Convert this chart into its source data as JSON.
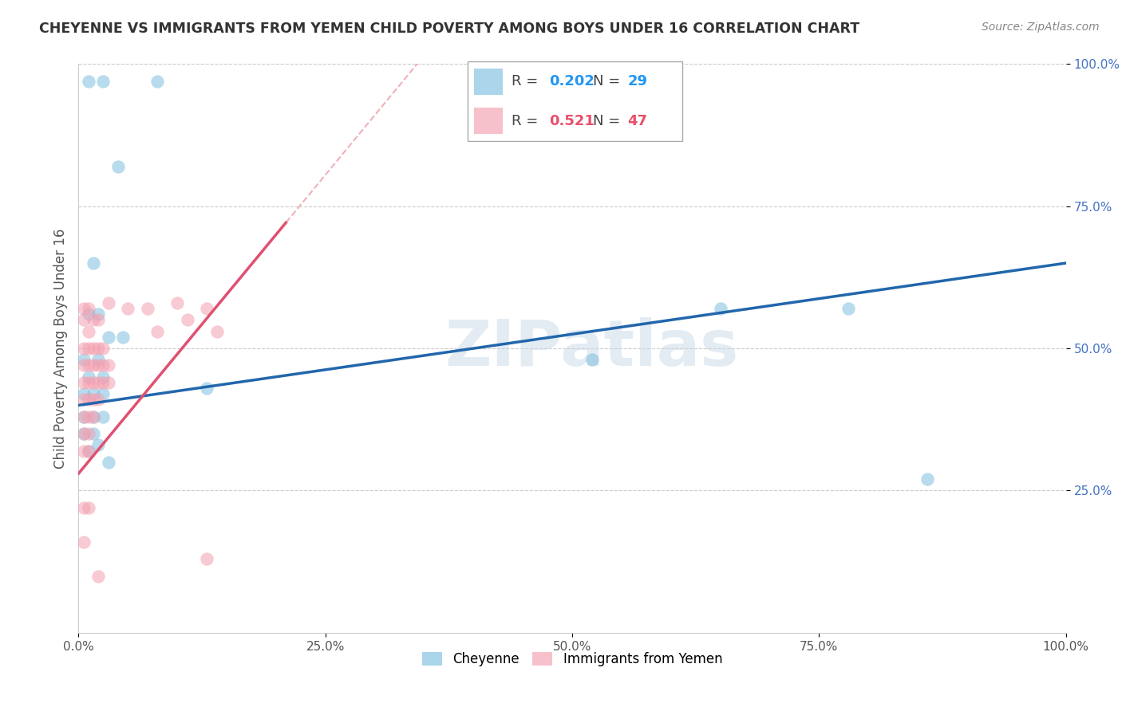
{
  "title": "CHEYENNE VS IMMIGRANTS FROM YEMEN CHILD POVERTY AMONG BOYS UNDER 16 CORRELATION CHART",
  "source": "Source: ZipAtlas.com",
  "ylabel": "Child Poverty Among Boys Under 16",
  "xlim": [
    0,
    1.0
  ],
  "ylim": [
    0,
    1.0
  ],
  "xtick_labels": [
    "0.0%",
    "25.0%",
    "50.0%",
    "75.0%",
    "100.0%"
  ],
  "xtick_positions": [
    0,
    0.25,
    0.5,
    0.75,
    1.0
  ],
  "ytick_labels": [
    "25.0%",
    "50.0%",
    "75.0%",
    "100.0%"
  ],
  "ytick_positions": [
    0.25,
    0.5,
    0.75,
    1.0
  ],
  "cheyenne_color": "#7fbfdf",
  "yemen_color": "#f4a0b0",
  "cheyenne_line_color": "#2166ac",
  "yemen_line_color": "#e05070",
  "yemen_dash_color": "#f0b0b8",
  "cheyenne_R": "0.202",
  "cheyenne_N": "29",
  "yemen_R": "0.521",
  "yemen_N": "47",
  "cheyenne_scatter": [
    [
      0.01,
      0.97
    ],
    [
      0.025,
      0.97
    ],
    [
      0.08,
      0.97
    ],
    [
      0.04,
      0.82
    ],
    [
      0.015,
      0.65
    ],
    [
      0.01,
      0.56
    ],
    [
      0.02,
      0.56
    ],
    [
      0.03,
      0.52
    ],
    [
      0.045,
      0.52
    ],
    [
      0.005,
      0.48
    ],
    [
      0.02,
      0.48
    ],
    [
      0.01,
      0.45
    ],
    [
      0.025,
      0.45
    ],
    [
      0.005,
      0.42
    ],
    [
      0.015,
      0.42
    ],
    [
      0.025,
      0.42
    ],
    [
      0.005,
      0.38
    ],
    [
      0.015,
      0.38
    ],
    [
      0.025,
      0.38
    ],
    [
      0.005,
      0.35
    ],
    [
      0.015,
      0.35
    ],
    [
      0.01,
      0.32
    ],
    [
      0.02,
      0.33
    ],
    [
      0.03,
      0.3
    ],
    [
      0.13,
      0.43
    ],
    [
      0.52,
      0.48
    ],
    [
      0.65,
      0.57
    ],
    [
      0.78,
      0.57
    ],
    [
      0.86,
      0.27
    ]
  ],
  "yemen_scatter": [
    [
      0.005,
      0.57
    ],
    [
      0.005,
      0.55
    ],
    [
      0.01,
      0.57
    ],
    [
      0.01,
      0.53
    ],
    [
      0.015,
      0.55
    ],
    [
      0.02,
      0.55
    ],
    [
      0.005,
      0.5
    ],
    [
      0.01,
      0.5
    ],
    [
      0.015,
      0.5
    ],
    [
      0.02,
      0.5
    ],
    [
      0.025,
      0.5
    ],
    [
      0.005,
      0.47
    ],
    [
      0.01,
      0.47
    ],
    [
      0.015,
      0.47
    ],
    [
      0.02,
      0.47
    ],
    [
      0.025,
      0.47
    ],
    [
      0.03,
      0.47
    ],
    [
      0.005,
      0.44
    ],
    [
      0.01,
      0.44
    ],
    [
      0.015,
      0.44
    ],
    [
      0.02,
      0.44
    ],
    [
      0.025,
      0.44
    ],
    [
      0.03,
      0.44
    ],
    [
      0.005,
      0.41
    ],
    [
      0.01,
      0.41
    ],
    [
      0.015,
      0.41
    ],
    [
      0.02,
      0.41
    ],
    [
      0.005,
      0.38
    ],
    [
      0.01,
      0.38
    ],
    [
      0.015,
      0.38
    ],
    [
      0.005,
      0.35
    ],
    [
      0.01,
      0.35
    ],
    [
      0.005,
      0.32
    ],
    [
      0.01,
      0.32
    ],
    [
      0.03,
      0.58
    ],
    [
      0.05,
      0.57
    ],
    [
      0.07,
      0.57
    ],
    [
      0.08,
      0.53
    ],
    [
      0.1,
      0.58
    ],
    [
      0.11,
      0.55
    ],
    [
      0.13,
      0.57
    ],
    [
      0.14,
      0.53
    ],
    [
      0.005,
      0.22
    ],
    [
      0.01,
      0.22
    ],
    [
      0.005,
      0.16
    ],
    [
      0.02,
      0.1
    ],
    [
      0.13,
      0.13
    ]
  ],
  "background_color": "#ffffff",
  "grid_color": "#cccccc",
  "watermark": "ZIPatlas",
  "watermark_color": "#c8d8e8"
}
